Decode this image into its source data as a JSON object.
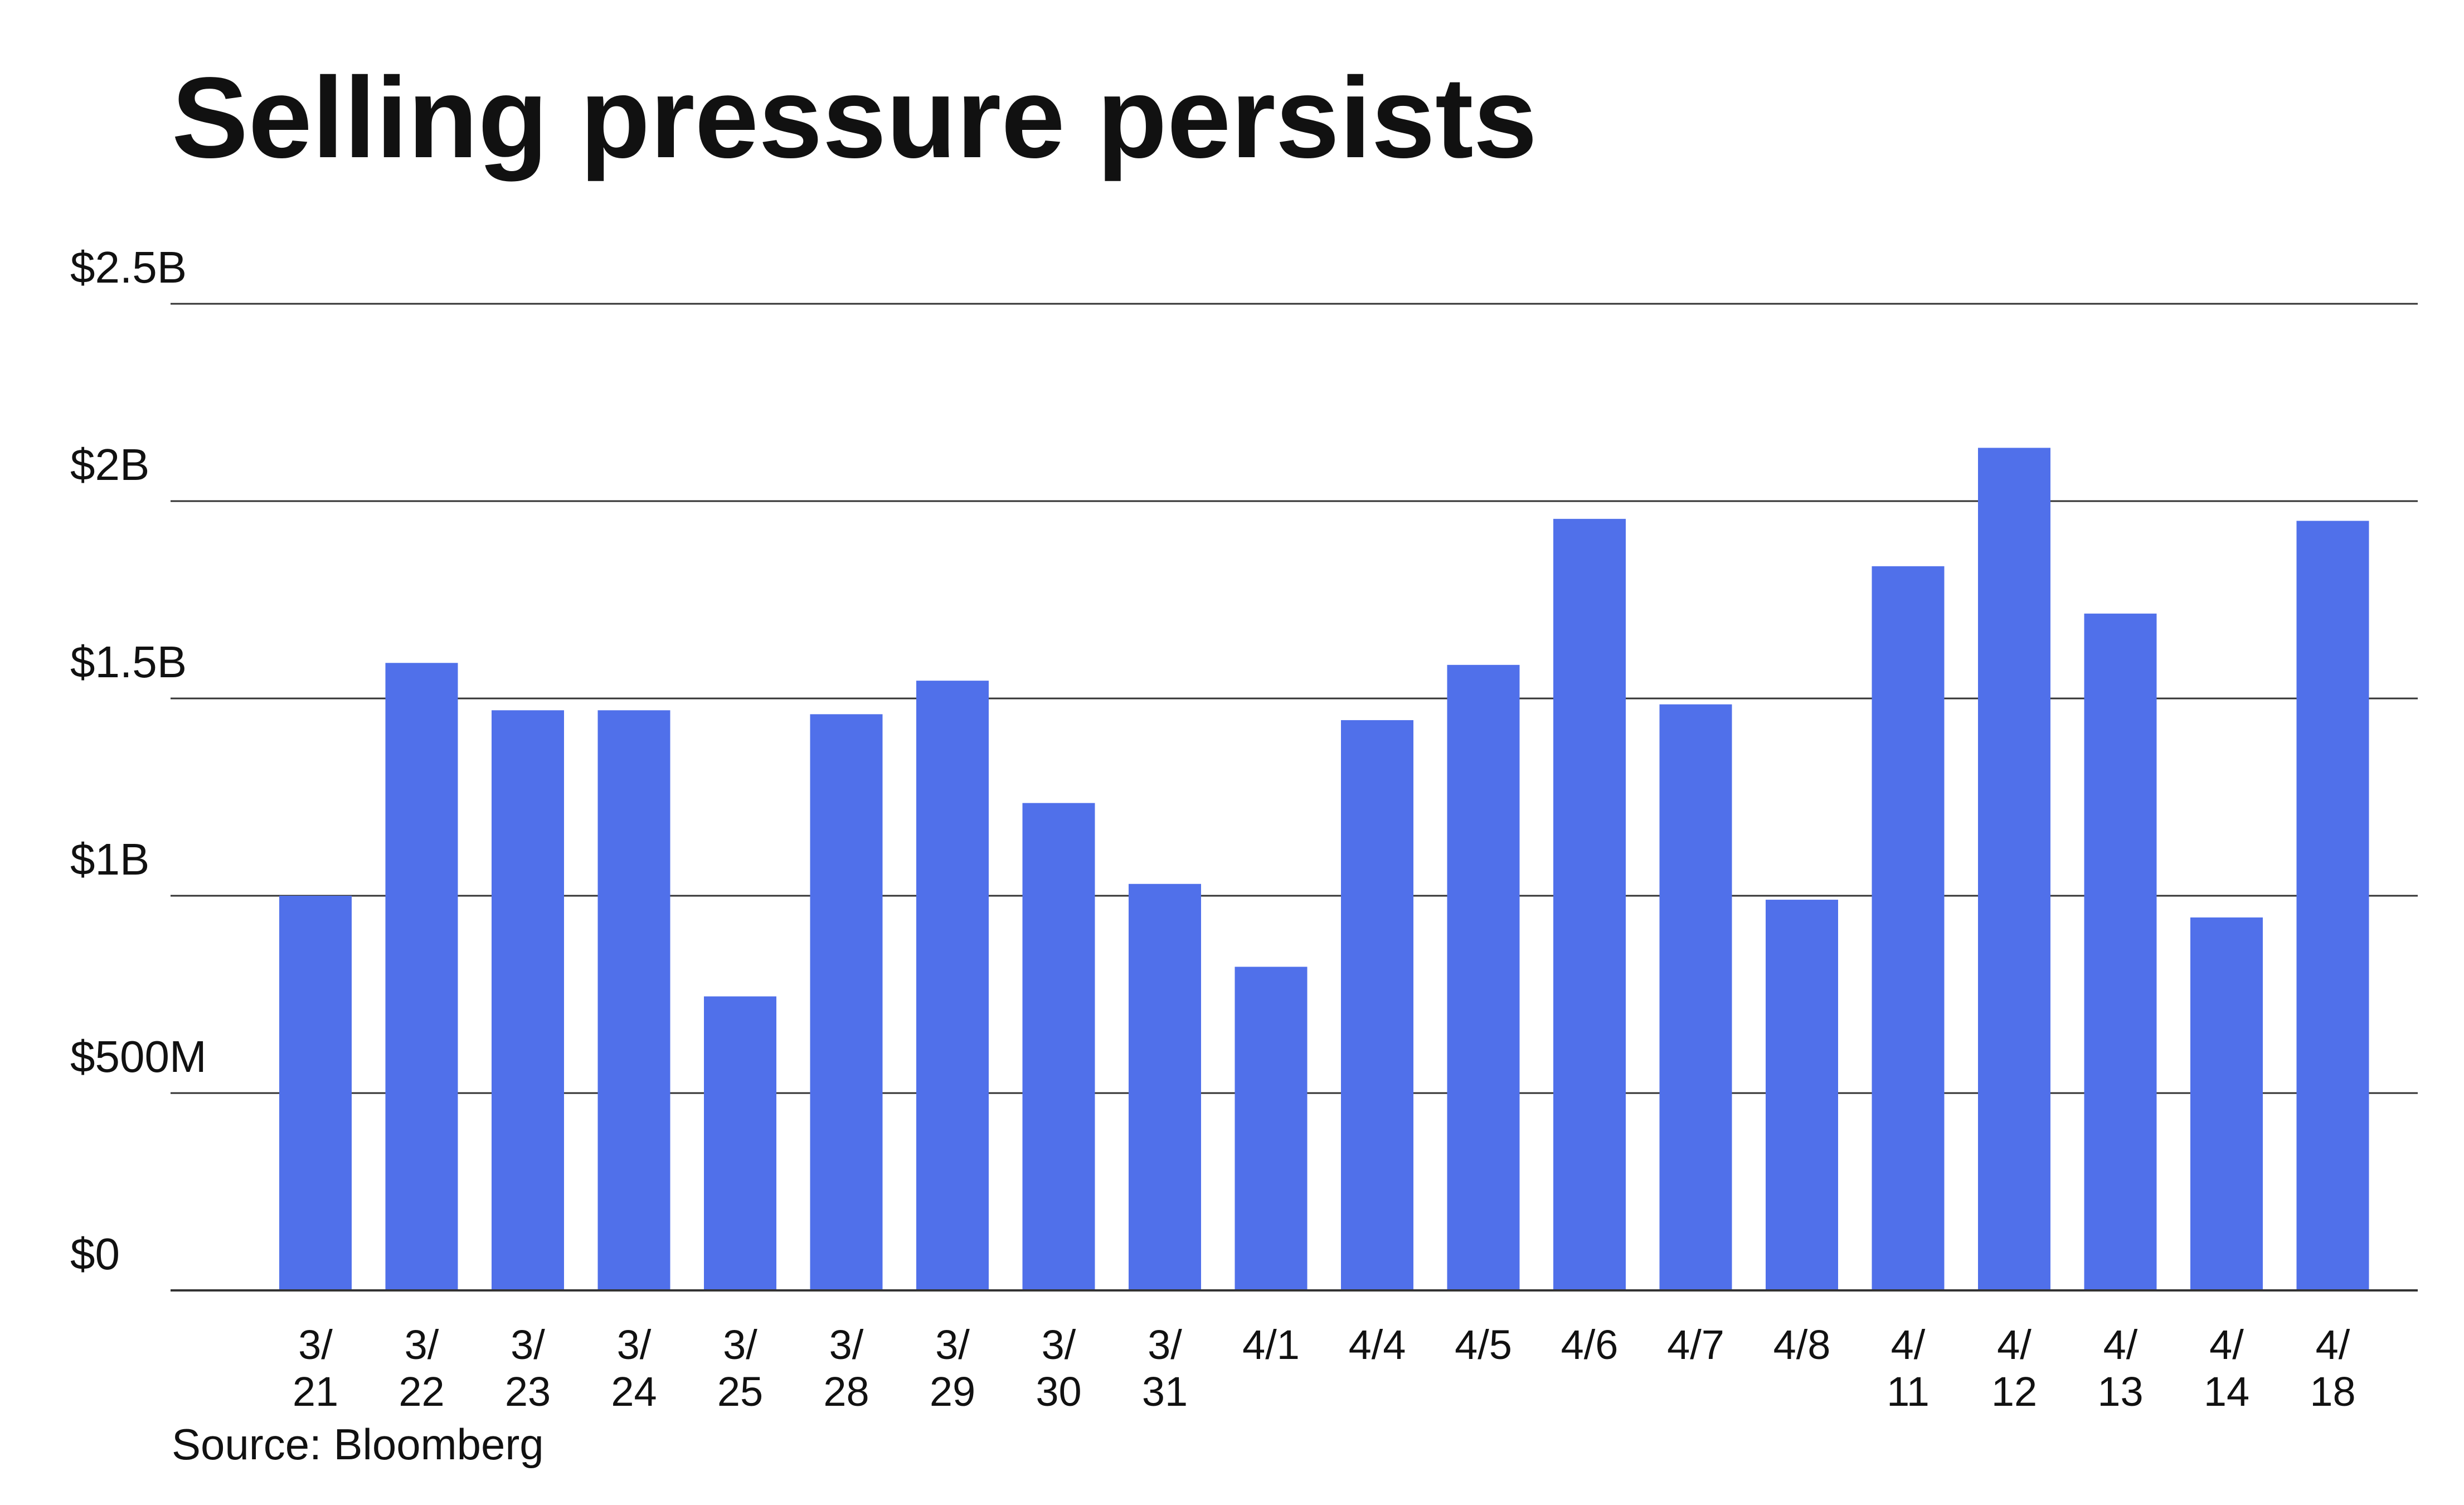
{
  "chart_data": {
    "type": "bar",
    "title": "Selling pressure persists",
    "subtitle": "",
    "xlabel": "",
    "ylabel": "",
    "categories": [
      [
        "3/",
        "21"
      ],
      [
        "3/",
        "22"
      ],
      [
        "3/",
        "23"
      ],
      [
        "3/",
        "24"
      ],
      [
        "3/",
        "25"
      ],
      [
        "3/",
        "28"
      ],
      [
        "3/",
        "29"
      ],
      [
        "3/",
        "30"
      ],
      [
        "3/",
        "31"
      ],
      [
        "4/1"
      ],
      [
        "4/4"
      ],
      [
        "4/5"
      ],
      [
        "4/6"
      ],
      [
        "4/7"
      ],
      [
        "4/8"
      ],
      [
        "4/",
        "11"
      ],
      [
        "4/",
        "12"
      ],
      [
        "4/",
        "13"
      ],
      [
        "4/",
        "14"
      ],
      [
        "4/",
        "18"
      ]
    ],
    "values": [
      1.0,
      1.59,
      1.47,
      1.47,
      0.745,
      1.46,
      1.545,
      1.235,
      1.03,
      0.82,
      1.445,
      1.585,
      1.955,
      1.485,
      0.99,
      1.835,
      2.135,
      1.715,
      0.945,
      1.95
    ],
    "value_unit": "billion USD",
    "ylim": [
      0,
      2.5
    ],
    "yticks": [
      0,
      0.5,
      1,
      1.5,
      2,
      2.5
    ],
    "ytick_labels": [
      "$0",
      "$500M",
      "$1B",
      "$1.5B",
      "$2B",
      "$2.5B"
    ],
    "grid": true,
    "legend": "none",
    "bar_color": "#5070EA",
    "gridline_color": "#333333",
    "text_color": "#111111",
    "source": "Source: Bloomberg"
  }
}
